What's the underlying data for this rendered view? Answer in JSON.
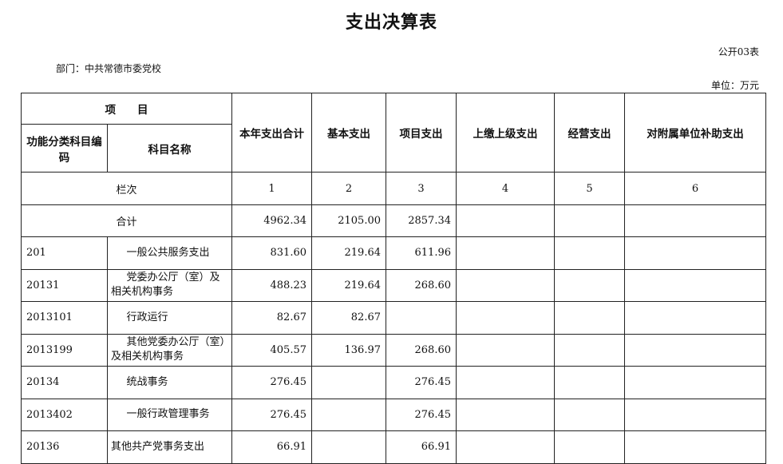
{
  "title": "支出决算表",
  "form_no": "公开03表",
  "department": "部门：中共常德市委党校",
  "unit": "单位：万元",
  "headers": {
    "item": "项　　目",
    "code": "功能分类科目编码",
    "name": "科目名称",
    "total": "本年支出合计",
    "basic": "基本支出",
    "project": "项目支出",
    "upper": "上缴上级支出",
    "business": "经营支出",
    "subsidy": "对附属单位补助支出"
  },
  "column_index": {
    "label": "栏次",
    "c1": "1",
    "c2": "2",
    "c3": "3",
    "c4": "4",
    "c5": "5",
    "c6": "6"
  },
  "sum_row": {
    "label": "合计",
    "total": "4962.34",
    "basic": "2105.00",
    "project": "2857.34"
  },
  "rows": [
    {
      "code": "201",
      "name": "一般公共服务支出",
      "total": "831.60",
      "basic": "219.64",
      "project": "611.96"
    },
    {
      "code": "20131",
      "name": "党委办公厅（室）及相关机构事务",
      "total": "488.23",
      "basic": "219.64",
      "project": "268.60"
    },
    {
      "code": "2013101",
      "name": "行政运行",
      "total": "82.67",
      "basic": "82.67",
      "project": ""
    },
    {
      "code": "2013199",
      "name": "其他党委办公厅（室）及相关机构事务",
      "total": "405.57",
      "basic": "136.97",
      "project": "268.60"
    },
    {
      "code": "20134",
      "name": "统战事务",
      "total": "276.45",
      "basic": "",
      "project": "276.45"
    },
    {
      "code": "2013402",
      "name": "一般行政管理事务",
      "total": "276.45",
      "basic": "",
      "project": "276.45"
    },
    {
      "code": "20136",
      "name": "其他共产党事务支出",
      "total": "66.91",
      "basic": "",
      "project": "66.91"
    }
  ]
}
